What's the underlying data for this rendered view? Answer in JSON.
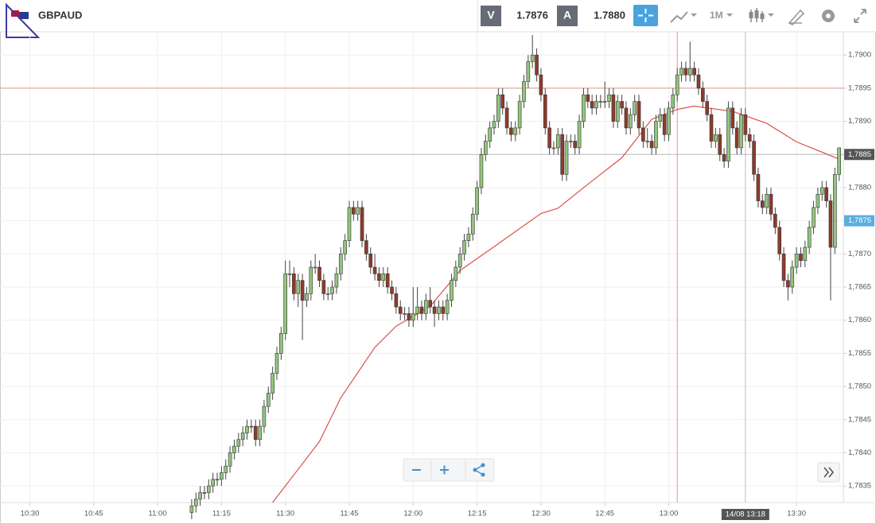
{
  "toolbar": {
    "symbol": "GBPAUD",
    "bid_label": "V",
    "bid": "1.7876",
    "ask_label": "A",
    "ask": "1.7880",
    "timeframe": "1M"
  },
  "chart_data": {
    "type": "candlestick",
    "x": [
      "11:08",
      "11:09",
      "11:10",
      "11:11",
      "11:12",
      "11:13",
      "11:14",
      "11:15",
      "11:16",
      "11:17",
      "11:18",
      "11:19",
      "11:20",
      "11:21",
      "11:22",
      "11:23",
      "11:24",
      "11:25",
      "11:26",
      "11:27",
      "11:28",
      "11:29",
      "11:30",
      "11:31",
      "11:32",
      "11:33",
      "11:34",
      "11:35",
      "11:36",
      "11:37",
      "11:38",
      "11:39",
      "11:40",
      "11:41",
      "11:42",
      "11:43",
      "11:44",
      "11:45",
      "11:46",
      "11:47",
      "11:48",
      "11:49",
      "11:50",
      "11:51",
      "11:52",
      "11:53",
      "11:54",
      "11:55",
      "11:56",
      "11:57",
      "11:58",
      "11:59",
      "12:00",
      "12:01",
      "12:02",
      "12:03",
      "12:04",
      "12:05",
      "12:06",
      "12:07",
      "12:08",
      "12:09",
      "12:10",
      "12:11",
      "12:12",
      "12:13",
      "12:14",
      "12:15",
      "12:16",
      "12:17",
      "12:18",
      "12:19",
      "12:20",
      "12:21",
      "12:22",
      "12:23",
      "12:24",
      "12:25",
      "12:26",
      "12:27",
      "12:28",
      "12:29",
      "12:30",
      "12:31",
      "12:32",
      "12:33",
      "12:34",
      "12:35",
      "12:36",
      "12:37",
      "12:38",
      "12:39",
      "12:40",
      "12:41",
      "12:42",
      "12:43",
      "12:44",
      "12:45",
      "12:46",
      "12:47",
      "12:48",
      "12:49",
      "12:50",
      "12:51",
      "12:52",
      "12:53",
      "12:54",
      "12:55",
      "12:56",
      "12:57",
      "12:58",
      "12:59",
      "13:00",
      "13:01",
      "13:02",
      "13:03",
      "13:04",
      "13:05",
      "13:06",
      "13:07",
      "13:08",
      "13:09",
      "13:10",
      "13:11",
      "13:12",
      "13:13",
      "13:14",
      "13:15",
      "13:16",
      "13:17",
      "13:18",
      "13:19",
      "13:20",
      "13:21",
      "13:22",
      "13:23",
      "13:24",
      "13:25",
      "13:26",
      "13:27",
      "13:28",
      "13:29",
      "13:30",
      "13:31",
      "13:32",
      "13:33",
      "13:34",
      "13:35",
      "13:36",
      "13:37",
      "13:38",
      "13:39",
      "13:40"
    ],
    "ohlc": [
      [
        1.7831,
        1.7833,
        1.783,
        1.7832
      ],
      [
        1.7832,
        1.7834,
        1.7831,
        1.7833
      ],
      [
        1.7833,
        1.7835,
        1.7832,
        1.7834
      ],
      [
        1.7834,
        1.7835,
        1.7833,
        1.7834
      ],
      [
        1.7834,
        1.7836,
        1.7833,
        1.7835
      ],
      [
        1.7835,
        1.7837,
        1.7834,
        1.7836
      ],
      [
        1.7836,
        1.7837,
        1.7835,
        1.7836
      ],
      [
        1.7836,
        1.7838,
        1.7835,
        1.7837
      ],
      [
        1.7837,
        1.7839,
        1.7836,
        1.7838
      ],
      [
        1.7838,
        1.7841,
        1.7837,
        1.784
      ],
      [
        1.784,
        1.7842,
        1.7839,
        1.7841
      ],
      [
        1.7841,
        1.7843,
        1.784,
        1.7842
      ],
      [
        1.7842,
        1.7844,
        1.7841,
        1.7843
      ],
      [
        1.7843,
        1.7845,
        1.7842,
        1.7844
      ],
      [
        1.7844,
        1.7845,
        1.7843,
        1.7844
      ],
      [
        1.7844,
        1.7845,
        1.7841,
        1.7842
      ],
      [
        1.7842,
        1.7845,
        1.7841,
        1.7844
      ],
      [
        1.7844,
        1.7848,
        1.7843,
        1.7847
      ],
      [
        1.7847,
        1.785,
        1.7846,
        1.7849
      ],
      [
        1.7849,
        1.7853,
        1.7848,
        1.7852
      ],
      [
        1.7852,
        1.7856,
        1.7851,
        1.7855
      ],
      [
        1.7855,
        1.7859,
        1.7854,
        1.7858
      ],
      [
        1.7858,
        1.7869,
        1.7857,
        1.7867
      ],
      [
        1.7867,
        1.7869,
        1.7865,
        1.7867
      ],
      [
        1.7867,
        1.7868,
        1.7863,
        1.7864
      ],
      [
        1.7864,
        1.7867,
        1.7862,
        1.7866
      ],
      [
        1.7866,
        1.7867,
        1.7857,
        1.7863
      ],
      [
        1.7863,
        1.7865,
        1.7862,
        1.7864
      ],
      [
        1.7864,
        1.7869,
        1.7863,
        1.7868
      ],
      [
        1.7868,
        1.787,
        1.7867,
        1.7868
      ],
      [
        1.7868,
        1.7869,
        1.7865,
        1.7866
      ],
      [
        1.7866,
        1.7867,
        1.7863,
        1.7864
      ],
      [
        1.7864,
        1.7865,
        1.7863,
        1.7864
      ],
      [
        1.7864,
        1.7866,
        1.7863,
        1.7865
      ],
      [
        1.7865,
        1.7868,
        1.7864,
        1.7867
      ],
      [
        1.7867,
        1.7871,
        1.7866,
        1.787
      ],
      [
        1.787,
        1.7873,
        1.7869,
        1.7872
      ],
      [
        1.7872,
        1.7878,
        1.7871,
        1.7877
      ],
      [
        1.7877,
        1.7878,
        1.7875,
        1.7876
      ],
      [
        1.7876,
        1.7878,
        1.7875,
        1.7877
      ],
      [
        1.7877,
        1.7878,
        1.7871,
        1.7872
      ],
      [
        1.7872,
        1.7873,
        1.7869,
        1.787
      ],
      [
        1.787,
        1.7871,
        1.7867,
        1.7868
      ],
      [
        1.7868,
        1.787,
        1.7866,
        1.7867
      ],
      [
        1.7867,
        1.7868,
        1.7865,
        1.7866
      ],
      [
        1.7866,
        1.7868,
        1.7865,
        1.7867
      ],
      [
        1.7867,
        1.7868,
        1.7864,
        1.7865
      ],
      [
        1.7865,
        1.7866,
        1.7863,
        1.7864
      ],
      [
        1.7864,
        1.7865,
        1.7861,
        1.7862
      ],
      [
        1.7862,
        1.7863,
        1.786,
        1.7861
      ],
      [
        1.7861,
        1.7862,
        1.786,
        1.7861
      ],
      [
        1.7861,
        1.7862,
        1.7859,
        1.786
      ],
      [
        1.786,
        1.7865,
        1.7859,
        1.7861
      ],
      [
        1.7861,
        1.7865,
        1.786,
        1.7862
      ],
      [
        1.7862,
        1.7863,
        1.786,
        1.7861
      ],
      [
        1.7861,
        1.7864,
        1.786,
        1.7863
      ],
      [
        1.7863,
        1.7865,
        1.7861,
        1.7862
      ],
      [
        1.7862,
        1.7863,
        1.7859,
        1.7861
      ],
      [
        1.7861,
        1.7863,
        1.786,
        1.7862
      ],
      [
        1.7862,
        1.7863,
        1.786,
        1.7861
      ],
      [
        1.7861,
        1.7864,
        1.786,
        1.7863
      ],
      [
        1.7863,
        1.7867,
        1.7862,
        1.7866
      ],
      [
        1.7866,
        1.7869,
        1.7865,
        1.7868
      ],
      [
        1.7868,
        1.7871,
        1.7867,
        1.787
      ],
      [
        1.787,
        1.7873,
        1.7869,
        1.7872
      ],
      [
        1.7872,
        1.7874,
        1.7871,
        1.7873
      ],
      [
        1.7873,
        1.7877,
        1.7872,
        1.7876
      ],
      [
        1.7876,
        1.7881,
        1.7875,
        1.788
      ],
      [
        1.788,
        1.7886,
        1.7879,
        1.7885
      ],
      [
        1.7885,
        1.7888,
        1.7884,
        1.7887
      ],
      [
        1.7887,
        1.789,
        1.7886,
        1.7889
      ],
      [
        1.7889,
        1.7891,
        1.7888,
        1.789
      ],
      [
        1.789,
        1.7895,
        1.7889,
        1.7894
      ],
      [
        1.7894,
        1.7895,
        1.7891,
        1.7892
      ],
      [
        1.7892,
        1.7893,
        1.7888,
        1.7889
      ],
      [
        1.7889,
        1.789,
        1.7887,
        1.7888
      ],
      [
        1.7888,
        1.789,
        1.7887,
        1.7889
      ],
      [
        1.7889,
        1.7894,
        1.7888,
        1.7893
      ],
      [
        1.7893,
        1.7897,
        1.7892,
        1.7896
      ],
      [
        1.7896,
        1.79,
        1.7895,
        1.7899
      ],
      [
        1.7899,
        1.7903,
        1.7898,
        1.79
      ],
      [
        1.79,
        1.7901,
        1.7896,
        1.7897
      ],
      [
        1.7897,
        1.7898,
        1.7893,
        1.7894
      ],
      [
        1.7894,
        1.7895,
        1.7888,
        1.7889
      ],
      [
        1.7889,
        1.789,
        1.7885,
        1.7886
      ],
      [
        1.7886,
        1.7887,
        1.7885,
        1.7886
      ],
      [
        1.7886,
        1.7889,
        1.7885,
        1.7888
      ],
      [
        1.7888,
        1.7889,
        1.7881,
        1.7882
      ],
      [
        1.7882,
        1.7888,
        1.7881,
        1.7887
      ],
      [
        1.7887,
        1.7888,
        1.7886,
        1.7887
      ],
      [
        1.7887,
        1.7888,
        1.7885,
        1.7886
      ],
      [
        1.7886,
        1.7891,
        1.7885,
        1.789
      ],
      [
        1.789,
        1.7895,
        1.7889,
        1.7894
      ],
      [
        1.7894,
        1.7895,
        1.7892,
        1.7893
      ],
      [
        1.7893,
        1.7894,
        1.7891,
        1.7892
      ],
      [
        1.7892,
        1.7894,
        1.7891,
        1.7893
      ],
      [
        1.7893,
        1.7894,
        1.7892,
        1.7893
      ],
      [
        1.7893,
        1.7896,
        1.7892,
        1.7893
      ],
      [
        1.7893,
        1.7895,
        1.7892,
        1.7894
      ],
      [
        1.7894,
        1.7895,
        1.7889,
        1.789
      ],
      [
        1.789,
        1.7894,
        1.7889,
        1.7893
      ],
      [
        1.7893,
        1.7894,
        1.7891,
        1.7892
      ],
      [
        1.7892,
        1.7893,
        1.7888,
        1.7889
      ],
      [
        1.7889,
        1.7892,
        1.7888,
        1.7891
      ],
      [
        1.7891,
        1.7894,
        1.789,
        1.7893
      ],
      [
        1.7893,
        1.7894,
        1.7888,
        1.7889
      ],
      [
        1.7889,
        1.789,
        1.7886,
        1.7887
      ],
      [
        1.7887,
        1.7889,
        1.7886,
        1.7887
      ],
      [
        1.7887,
        1.7888,
        1.7885,
        1.7886
      ],
      [
        1.7886,
        1.7891,
        1.7885,
        1.789
      ],
      [
        1.789,
        1.7892,
        1.7889,
        1.7891
      ],
      [
        1.7891,
        1.7892,
        1.7887,
        1.7888
      ],
      [
        1.7888,
        1.7893,
        1.7887,
        1.7892
      ],
      [
        1.7892,
        1.7895,
        1.7891,
        1.7894
      ],
      [
        1.7894,
        1.7898,
        1.7893,
        1.7897
      ],
      [
        1.7897,
        1.7899,
        1.7896,
        1.7898
      ],
      [
        1.7898,
        1.7899,
        1.7896,
        1.7897
      ],
      [
        1.7897,
        1.7902,
        1.7896,
        1.7898
      ],
      [
        1.7898,
        1.7899,
        1.7896,
        1.7897
      ],
      [
        1.7897,
        1.7898,
        1.7894,
        1.7895
      ],
      [
        1.7895,
        1.7896,
        1.7892,
        1.7893
      ],
      [
        1.7893,
        1.7894,
        1.789,
        1.7891
      ],
      [
        1.7891,
        1.7892,
        1.7886,
        1.7887
      ],
      [
        1.7887,
        1.7889,
        1.7886,
        1.7888
      ],
      [
        1.7888,
        1.7889,
        1.7884,
        1.7885
      ],
      [
        1.7885,
        1.7886,
        1.7883,
        1.7884
      ],
      [
        1.7884,
        1.7893,
        1.7883,
        1.7892
      ],
      [
        1.7892,
        1.7893,
        1.7888,
        1.7889
      ],
      [
        1.7889,
        1.789,
        1.7885,
        1.7886
      ],
      [
        1.7886,
        1.7892,
        1.7885,
        1.7891
      ],
      [
        1.7891,
        1.7892,
        1.7887,
        1.7888
      ],
      [
        1.7888,
        1.7889,
        1.7886,
        1.7887
      ],
      [
        1.7887,
        1.7888,
        1.7881,
        1.7882
      ],
      [
        1.7882,
        1.7883,
        1.7877,
        1.7878
      ],
      [
        1.7878,
        1.7879,
        1.7876,
        1.7877
      ],
      [
        1.7877,
        1.788,
        1.7876,
        1.7879
      ],
      [
        1.7879,
        1.788,
        1.7875,
        1.7876
      ],
      [
        1.7876,
        1.7877,
        1.7873,
        1.7874
      ],
      [
        1.7874,
        1.7875,
        1.7869,
        1.787
      ],
      [
        1.787,
        1.7871,
        1.7865,
        1.7866
      ],
      [
        1.7866,
        1.7867,
        1.7863,
        1.7865
      ],
      [
        1.7865,
        1.7869,
        1.7864,
        1.7868
      ],
      [
        1.7868,
        1.7871,
        1.7867,
        1.787
      ],
      [
        1.787,
        1.7871,
        1.7868,
        1.7869
      ],
      [
        1.7869,
        1.7872,
        1.7868,
        1.7871
      ],
      [
        1.7871,
        1.7875,
        1.787,
        1.7874
      ],
      [
        1.7874,
        1.7878,
        1.7873,
        1.7877
      ],
      [
        1.7877,
        1.788,
        1.7876,
        1.7879
      ],
      [
        1.7879,
        1.7881,
        1.7878,
        1.788
      ],
      [
        1.788,
        1.7881,
        1.7877,
        1.7878
      ],
      [
        1.7878,
        1.7879,
        1.7863,
        1.7871
      ],
      [
        1.7871,
        1.7883,
        1.787,
        1.7882
      ],
      [
        1.7882,
        1.7886,
        1.7881,
        1.7886
      ]
    ],
    "up_color": "#93c47d",
    "down_color": "#8e3b2b",
    "ylim": [
      1.78325,
      1.79035
    ],
    "yticks": [
      {
        "value": 1.7835,
        "label": "1,7835"
      },
      {
        "value": 1.784,
        "label": "1,7840"
      },
      {
        "value": 1.7845,
        "label": "1,7845"
      },
      {
        "value": 1.785,
        "label": "1,7850"
      },
      {
        "value": 1.7855,
        "label": "1,7855"
      },
      {
        "value": 1.786,
        "label": "1,7860"
      },
      {
        "value": 1.7865,
        "label": "1,7865"
      },
      {
        "value": 1.787,
        "label": "1,7870"
      },
      {
        "value": 1.7875,
        "label": "1,7875"
      },
      {
        "value": 1.788,
        "label": "1,7880"
      },
      {
        "value": 1.7885,
        "label": "1,7885"
      },
      {
        "value": 1.789,
        "label": "1,7890"
      },
      {
        "value": 1.7895,
        "label": "1,7895"
      },
      {
        "value": 1.79,
        "label": "1,7900"
      }
    ],
    "xlim": [
      "10:23",
      "13:41"
    ],
    "xticks": [
      "10:30",
      "10:45",
      "11:00",
      "11:15",
      "11:30",
      "11:45",
      "12:00",
      "12:15",
      "12:30",
      "12:45",
      "13:00",
      "13:30"
    ],
    "grid": true,
    "moving_average": {
      "color": "#d9534f",
      "x": [
        "11:27",
        "11:38",
        "11:43",
        "11:51",
        "11:56",
        "12:04",
        "12:11",
        "12:19",
        "12:30",
        "12:34",
        "12:41",
        "12:49",
        "12:56",
        "13:02",
        "13:06",
        "13:15",
        "13:23",
        "13:30",
        "13:40"
      ],
      "values": [
        1.78325,
        1.78417,
        1.78483,
        1.78559,
        1.78591,
        1.78621,
        1.78675,
        1.78711,
        1.78761,
        1.78769,
        1.78805,
        1.78845,
        1.78903,
        1.78918,
        1.78923,
        1.78915,
        1.78897,
        1.78869,
        1.78843
      ]
    },
    "current_price": {
      "value": 1.7885,
      "label": "1,7885"
    },
    "crosshair": {
      "x": "13:18",
      "x_label": "14/08 13:18",
      "y": 1.7875,
      "y_label": "1,7875"
    },
    "reference_lines": {
      "x": "13:02",
      "y": 1.7895,
      "color": "#e8908c"
    }
  }
}
